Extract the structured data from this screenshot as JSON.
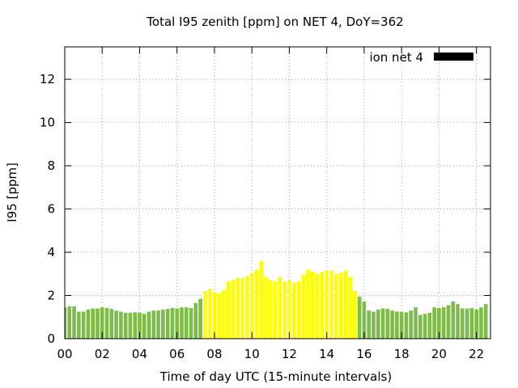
{
  "chart_data": {
    "type": "bar",
    "title": "Total I95 zenith [ppm] on NET 4, DoY=362",
    "xlabel": "Time of day UTC (15-minute intervals)",
    "ylabel": "I95 [ppm]",
    "legend": {
      "label": "ion net 4",
      "placement": "top-right",
      "swatch_color": "#000000"
    },
    "grid": true,
    "xlim": [
      0,
      22.75
    ],
    "ylim": [
      0,
      13.5
    ],
    "x_ticks": [
      "00",
      "02",
      "04",
      "06",
      "08",
      "10",
      "12",
      "14",
      "16",
      "18",
      "20",
      "22"
    ],
    "y_ticks": [
      "0",
      "2",
      "4",
      "6",
      "8",
      "10",
      "12"
    ],
    "bar_interval_hours": 0.25,
    "colors": {
      "low": "#7dbd47",
      "high": "#ffff00",
      "grid": "#a0a0a0"
    },
    "values": [
      1.45,
      1.5,
      1.5,
      1.25,
      1.25,
      1.35,
      1.4,
      1.4,
      1.45,
      1.42,
      1.38,
      1.3,
      1.25,
      1.2,
      1.2,
      1.22,
      1.2,
      1.15,
      1.25,
      1.3,
      1.3,
      1.35,
      1.38,
      1.42,
      1.4,
      1.45,
      1.45,
      1.42,
      1.65,
      1.85,
      2.2,
      2.3,
      2.15,
      2.1,
      2.25,
      2.65,
      2.7,
      2.8,
      2.8,
      2.9,
      3.05,
      3.2,
      3.6,
      2.85,
      2.7,
      2.65,
      2.85,
      2.65,
      2.7,
      2.6,
      2.65,
      2.95,
      3.2,
      3.1,
      3.0,
      3.1,
      3.15,
      3.15,
      3.0,
      3.05,
      3.15,
      2.85,
      2.2,
      1.95,
      1.72,
      1.3,
      1.25,
      1.35,
      1.4,
      1.38,
      1.3,
      1.25,
      1.25,
      1.22,
      1.3,
      1.45,
      1.1,
      1.15,
      1.2,
      1.45,
      1.42,
      1.45,
      1.55,
      1.72,
      1.6,
      1.4,
      1.4,
      1.42,
      1.35,
      1.45,
      1.6
    ],
    "series_color_index": [
      0,
      0,
      0,
      0,
      0,
      0,
      0,
      0,
      0,
      0,
      0,
      0,
      0,
      0,
      0,
      0,
      0,
      0,
      0,
      0,
      0,
      0,
      0,
      0,
      0,
      0,
      0,
      0,
      0,
      0,
      1,
      1,
      1,
      1,
      1,
      1,
      1,
      1,
      1,
      1,
      1,
      1,
      1,
      1,
      1,
      1,
      1,
      1,
      1,
      1,
      1,
      1,
      1,
      1,
      1,
      1,
      1,
      1,
      1,
      1,
      1,
      1,
      1,
      0,
      0,
      0,
      0,
      0,
      0,
      0,
      0,
      0,
      0,
      0,
      0,
      0,
      0,
      0,
      0,
      0,
      0,
      0,
      0,
      0,
      0,
      0,
      0,
      0,
      0,
      0,
      0
    ]
  }
}
